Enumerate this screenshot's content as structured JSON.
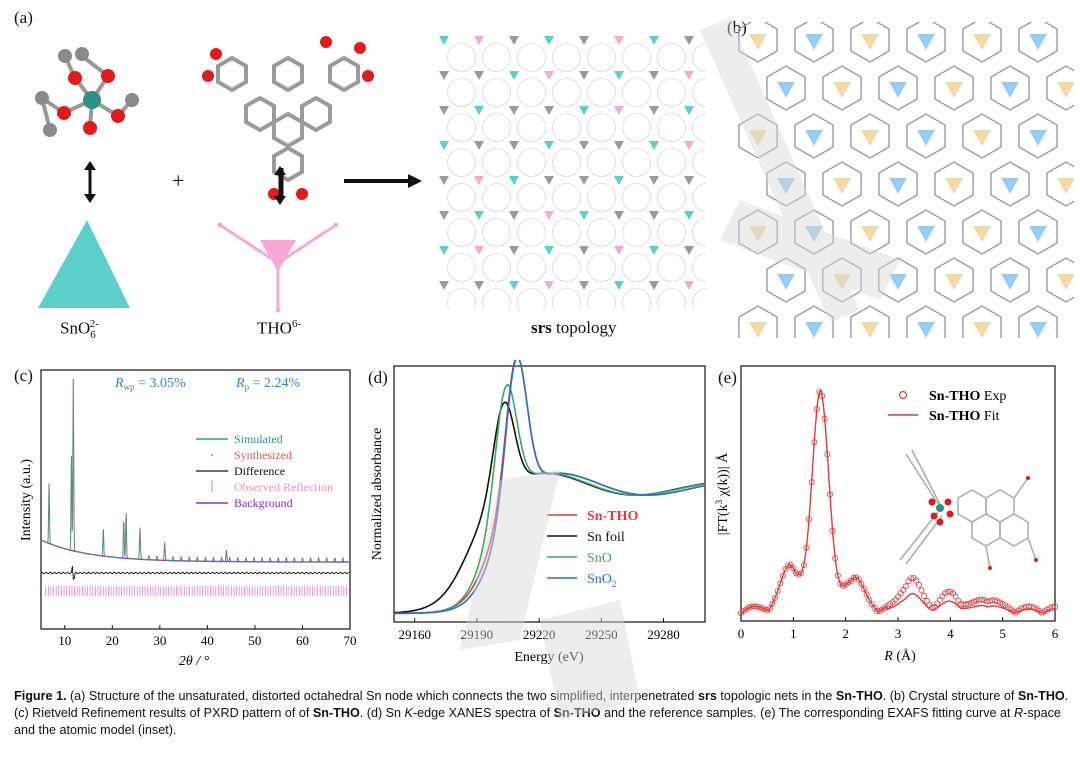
{
  "panel_a": {
    "letter": "(a)",
    "label_sno": "SnO",
    "label_sno_sub": "6",
    "label_sno_sup": "2-",
    "label_tho": "THO",
    "label_tho_sup": "6-",
    "plus": "+",
    "topology_bold": "srs",
    "topology_rest": " topology",
    "colors": {
      "teal": "#5ccfc9",
      "pink": "#f7a8d6",
      "oxygen": "#e01b1b",
      "carbon": "#8a8a8a"
    }
  },
  "panel_b": {
    "letter": "(b)",
    "colors": {
      "blue": "#8fc8ea",
      "yellow": "#f2d49b"
    }
  },
  "panel_c": {
    "letter": "(c)",
    "rwp_label": "R",
    "rwp_sub": "wp",
    "rwp_value": " = 3.05%",
    "rp_label": "R",
    "rp_sub": "p",
    "rp_value": " = 2.24%",
    "ylabel": "Intensity (a.u.)",
    "xlabel": "2θ / °",
    "legend": [
      "Simulated",
      "Synthesized",
      "Difference",
      "Observed Reflection",
      "Background"
    ],
    "legend_colors": [
      "#2a9d8f",
      "#e05a5a",
      "#111111",
      "#f08ccc",
      "#8a2be2"
    ]
  },
  "panel_d": {
    "letter": "(d)",
    "ylabel": "Normalized absorbance",
    "xlabel": "Energy (eV)",
    "legend": [
      "Sn-THO",
      "Sn foil",
      "SnO",
      "SnO",
      "2"
    ],
    "legend_colors": [
      "#e03a3a",
      "#111111",
      "#3aa860",
      "#2a6fd6"
    ]
  },
  "panel_e": {
    "letter": "(e)",
    "ylabel_a": "|FT(k",
    "ylabel_sup": "3",
    "ylabel_b": " χ(k))| Å",
    "xlabel_r": "R",
    "xlabel_rest": " (Å)",
    "legend_bold_1": "Sn-THO",
    "legend_rest_1": " Exp",
    "legend_bold_2": "Sn-THO",
    "legend_rest_2": " Fit",
    "color": "#e03a3a"
  },
  "chart_data": [
    {
      "type": "line",
      "panel": "c",
      "xlabel": "2θ / °",
      "ylabel": "Intensity (a.u.)",
      "xlim": [
        5,
        70
      ],
      "x_ticks": [
        10,
        20,
        30,
        40,
        50,
        60,
        70
      ],
      "series": [
        {
          "name": "Simulated",
          "peaks_x": [
            6.7,
            11.4,
            11.8,
            18.1,
            22.4,
            22.9,
            25.8,
            31.0,
            44.0
          ],
          "peaks_rel": [
            0.36,
            0.55,
            1.0,
            0.16,
            0.23,
            0.27,
            0.18,
            0.09,
            0.07
          ]
        },
        {
          "name": "Synthesized"
        },
        {
          "name": "Difference"
        },
        {
          "name": "Observed Reflection"
        },
        {
          "name": "Background"
        }
      ]
    },
    {
      "type": "line",
      "panel": "d",
      "xlabel": "Energy (eV)",
      "ylabel": "Normalized absorbance",
      "xlim": [
        29150,
        29300
      ],
      "x_ticks": [
        29160,
        29190,
        29220,
        29250,
        29280
      ],
      "series": [
        {
          "name": "Sn-THO",
          "edge_peak_x": 29209,
          "edge_peak_rel": 1.0
        },
        {
          "name": "Sn foil",
          "edge_peak_x": 29203,
          "edge_peak_rel": 0.66
        },
        {
          "name": "SnO",
          "edge_peak_x": 29204,
          "edge_peak_rel": 0.83
        },
        {
          "name": "SnO2",
          "edge_peak_x": 29209,
          "edge_peak_rel": 1.02
        }
      ]
    },
    {
      "type": "scatter",
      "panel": "e",
      "xlabel": "R (Å)",
      "xlim": [
        0,
        6
      ],
      "x_ticks": [
        0,
        1,
        2,
        3,
        4,
        5,
        6
      ],
      "series": [
        {
          "name": "Sn-THO Exp",
          "peak_x": 1.52,
          "peak_rel": 1.0,
          "side_peaks": [
            [
              0.95,
              0.2
            ],
            [
              2.15,
              0.15
            ],
            [
              3.25,
              0.14
            ],
            [
              4.0,
              0.07
            ],
            [
              4.7,
              0.05
            ]
          ]
        },
        {
          "name": "Sn-THO Fit",
          "peak_x": 1.52,
          "peak_rel": 1.0
        }
      ]
    }
  ],
  "caption": {
    "fig": "Figure 1.",
    "t1": " (a) Structure of the unsaturated, distorted octahedral Sn node which connects the two simplified, interpenetrated ",
    "b1": "srs",
    "t2": " topologic nets in the ",
    "b2": "Sn-THO",
    "t3": ". (b) Crystal structure of ",
    "b3": "Sn-THO",
    "t4": ". (c) Rietveld Refinement results of PXRD pattern of of ",
    "b4": "Sn-THO",
    "t5": ". (d) Sn ",
    "i1": "K",
    "t6": "-edge XANES spectra of ",
    "b5": "Sn-THO",
    "t7": " and the reference samples. (e) The corresponding EXAFS fitting curve at ",
    "i2": "R",
    "t8": "-space and the atomic model (inset)."
  }
}
